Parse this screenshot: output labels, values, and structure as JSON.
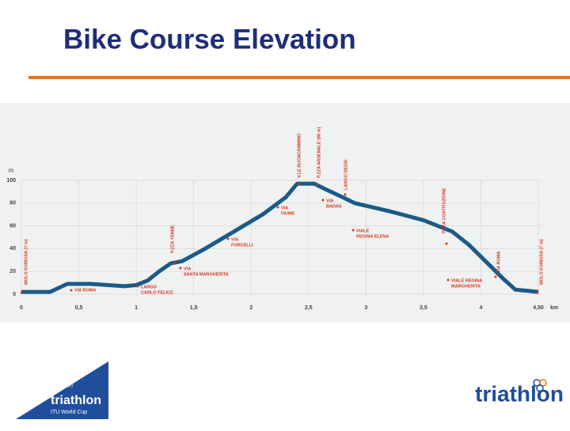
{
  "title": "Bike Course Elevation",
  "chart_data": {
    "type": "line",
    "xlabel": "km",
    "ylabel": "m",
    "x": [
      0,
      0.25,
      0.4,
      0.6,
      0.9,
      1.0,
      1.1,
      1.2,
      1.3,
      1.4,
      1.6,
      1.85,
      2.1,
      2.3,
      2.4,
      2.55,
      2.65,
      2.8,
      2.9,
      3.2,
      3.5,
      3.75,
      3.9,
      4.05,
      4.2,
      4.3,
      4.5
    ],
    "values": [
      2,
      2,
      9,
      9,
      7,
      8,
      12,
      20,
      27,
      29,
      40,
      55,
      70,
      85,
      97,
      97,
      92,
      85,
      80,
      73,
      65,
      55,
      43,
      28,
      13,
      4,
      2
    ],
    "color": "#1c5a86",
    "xlim": [
      0,
      4.5
    ],
    "ylim": [
      0,
      100
    ],
    "xticks": [
      0,
      {
        "value": 0.5,
        "label": "0,5"
      },
      1,
      {
        "value": 1.5,
        "label": "1,5"
      },
      2,
      {
        "value": 2.5,
        "label": "2,5"
      },
      3,
      {
        "value": 3.5,
        "label": "3,5"
      },
      4,
      {
        "value": 4.5,
        "label": "4,50"
      }
    ],
    "yticks": [
      0,
      20,
      40,
      60,
      80,
      100
    ],
    "grid": true,
    "annotations": [
      [
        "MOLO ICHNUSA (7 m)"
      ],
      [
        "P.ZZA YENNE"
      ],
      [
        "V.LE BUONCAMMINO"
      ],
      [
        "P.ZZA ARSENALE (98 m)"
      ],
      [
        "LARGO DESSI"
      ],
      [
        "P.ZZA COSTITUZIONE"
      ],
      [
        "VIA ROMA"
      ],
      [
        "MOLO ICHNUSA (7 m)"
      ],
      [
        "VIA ROMA"
      ],
      [
        "LARGO",
        "CARLO FELICE"
      ],
      [
        "VIA",
        "SANTA MARGHERITA"
      ],
      [
        "VIA",
        "FORCELLI"
      ],
      [
        "VIA",
        "FIUME"
      ],
      [
        "VIA",
        "BADAS"
      ],
      [
        "VIALE",
        "REGINA ELENA"
      ],
      [
        "VIALE REGINA",
        "MARGHERITA"
      ]
    ]
  },
  "logos": {
    "left": [
      "CAGLIARI",
      "triathlon",
      "ITU World Cup"
    ],
    "right": "triathlon"
  }
}
